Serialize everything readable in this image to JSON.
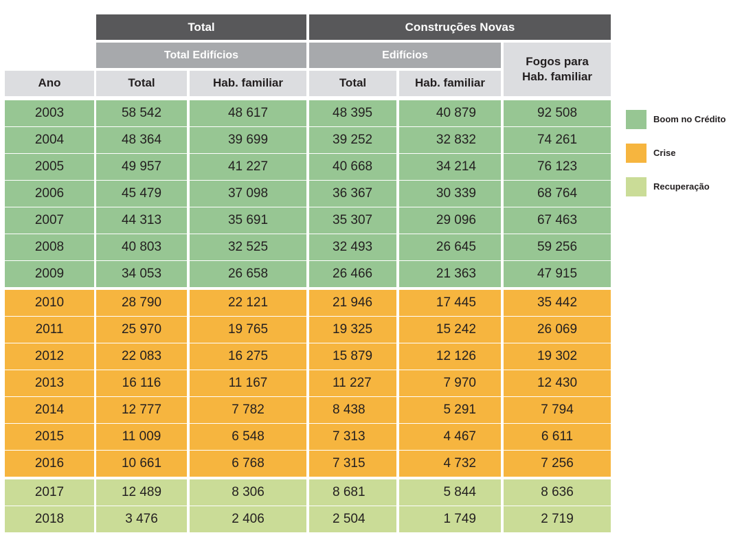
{
  "header": {
    "total_group": "Total",
    "new_construction_group": "Construções Novas",
    "total_buildings": "Total Edifícios",
    "buildings": "Edifícios",
    "dwellings_family": "Fogos para\nHab. familiar",
    "year": "Ano",
    "col_total": "Total",
    "col_family": "Hab. familiar"
  },
  "legend": [
    {
      "label": "Boom no Crédito",
      "color": "#97c693"
    },
    {
      "label": "Crise",
      "color": "#f6b53f"
    },
    {
      "label": "Recuperação",
      "color": "#cadc97"
    }
  ],
  "chart_data": {
    "type": "table",
    "columns": [
      "Ano",
      "Total Edifícios - Total",
      "Total Edifícios - Hab. familiar",
      "Construções Novas Edifícios - Total",
      "Construções Novas Edifícios - Hab. familiar",
      "Fogos para Hab. familiar"
    ],
    "rows": [
      {
        "year": "2003",
        "period": 0,
        "values": [
          "58 542",
          "48 617",
          "48 395",
          "40 879",
          "92 508"
        ]
      },
      {
        "year": "2004",
        "period": 0,
        "values": [
          "48 364",
          "39 699",
          "39 252",
          "32 832",
          "74 261"
        ]
      },
      {
        "year": "2005",
        "period": 0,
        "values": [
          "49 957",
          "41 227",
          "40 668",
          "34 214",
          "76 123"
        ]
      },
      {
        "year": "2006",
        "period": 0,
        "values": [
          "45 479",
          "37 098",
          "36 367",
          "30 339",
          "68 764"
        ]
      },
      {
        "year": "2007",
        "period": 0,
        "values": [
          "44 313",
          "35 691",
          "35 307",
          "29 096",
          "67 463"
        ]
      },
      {
        "year": "2008",
        "period": 0,
        "values": [
          "40 803",
          "32 525",
          "32 493",
          "26 645",
          "59 256"
        ]
      },
      {
        "year": "2009",
        "period": 0,
        "values": [
          "34 053",
          "26 658",
          "26 466",
          "21 363",
          "47 915"
        ]
      },
      {
        "year": "2010",
        "period": 1,
        "values": [
          "28 790",
          "22 121",
          "21 946",
          "17 445",
          "35 442"
        ]
      },
      {
        "year": "2011",
        "period": 1,
        "values": [
          "25 970",
          "19 765",
          "19 325",
          "15 242",
          "26 069"
        ]
      },
      {
        "year": "2012",
        "period": 1,
        "values": [
          "22 083",
          "16 275",
          "15 879",
          "12 126",
          "19 302"
        ]
      },
      {
        "year": "2013",
        "period": 1,
        "values": [
          "16 116",
          "11 167",
          "11 227",
          "7 970",
          "12 430"
        ]
      },
      {
        "year": "2014",
        "period": 1,
        "values": [
          "12 777",
          "7 782",
          "8 438",
          "5 291",
          "7 794"
        ]
      },
      {
        "year": "2015",
        "period": 1,
        "values": [
          "11 009",
          "6 548",
          "7 313",
          "4 467",
          "6 611"
        ]
      },
      {
        "year": "2016",
        "period": 1,
        "values": [
          "10 661",
          "6 768",
          "7 315",
          "4 732",
          "7 256"
        ]
      },
      {
        "year": "2017",
        "period": 2,
        "values": [
          "12 489",
          "8 306",
          "8 681",
          "5 844",
          "8 636"
        ]
      },
      {
        "year": "2018",
        "period": 2,
        "values": [
          "3 476",
          "2 406",
          "2 504",
          "1 749",
          "2 719"
        ]
      }
    ]
  }
}
